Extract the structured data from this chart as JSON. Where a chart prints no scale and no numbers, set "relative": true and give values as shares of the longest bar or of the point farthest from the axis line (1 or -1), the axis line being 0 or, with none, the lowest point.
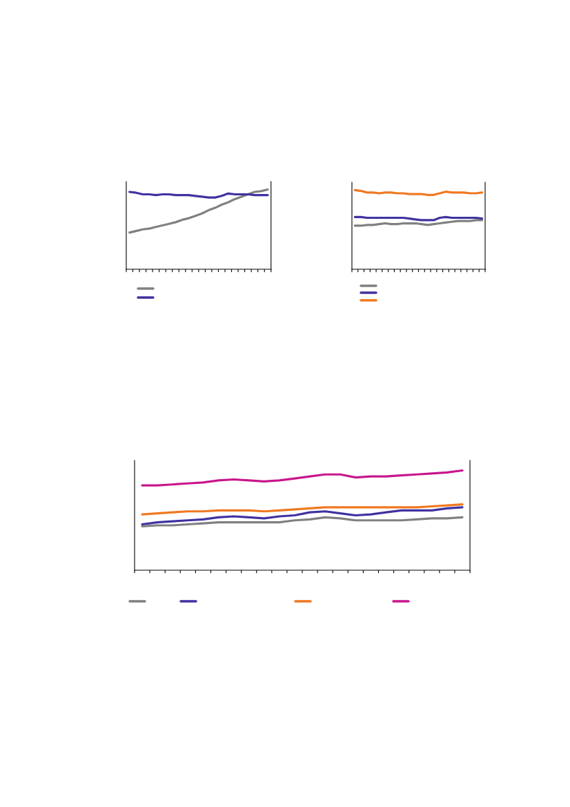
{
  "chart_data": [
    {
      "type": "line",
      "relative": true,
      "grid": false,
      "marker": "none",
      "line_style": "solid",
      "categories": [
        null,
        null,
        null,
        null,
        null,
        null,
        null,
        null,
        null,
        null,
        null,
        null,
        null,
        null,
        null,
        null,
        null,
        null,
        null,
        null,
        null,
        null
      ],
      "series": [
        {
          "color": "#808080",
          "values": [
            0.46,
            0.48,
            0.5,
            0.51,
            0.53,
            0.55,
            0.57,
            0.59,
            0.62,
            0.64,
            0.67,
            0.7,
            0.74,
            0.77,
            0.81,
            0.84,
            0.88,
            0.91,
            0.94,
            0.97,
            0.98,
            1.0
          ]
        },
        {
          "color": "#3f32a0",
          "values": [
            0.97,
            0.96,
            0.94,
            0.94,
            0.93,
            0.94,
            0.94,
            0.93,
            0.93,
            0.93,
            0.92,
            0.91,
            0.9,
            0.9,
            0.92,
            0.95,
            0.94,
            0.94,
            0.94,
            0.93,
            0.93,
            0.93
          ]
        }
      ]
    },
    {
      "type": "line",
      "relative": true,
      "grid": false,
      "marker": "none",
      "line_style": "solid",
      "categories": [
        null,
        null,
        null,
        null,
        null,
        null,
        null,
        null,
        null,
        null,
        null,
        null,
        null,
        null,
        null,
        null,
        null,
        null,
        null,
        null,
        null,
        null
      ],
      "series": [
        {
          "color": "#808080",
          "values": [
            0.55,
            0.55,
            0.56,
            0.56,
            0.57,
            0.58,
            0.57,
            0.57,
            0.58,
            0.58,
            0.58,
            0.57,
            0.56,
            0.57,
            0.58,
            0.59,
            0.6,
            0.61,
            0.61,
            0.61,
            0.62,
            0.62
          ]
        },
        {
          "color": "#3f32a0",
          "values": [
            0.66,
            0.66,
            0.65,
            0.65,
            0.65,
            0.65,
            0.65,
            0.65,
            0.65,
            0.64,
            0.63,
            0.62,
            0.62,
            0.62,
            0.65,
            0.66,
            0.65,
            0.65,
            0.65,
            0.65,
            0.65,
            0.64
          ]
        },
        {
          "color": "#f07820",
          "values": [
            1.0,
            0.99,
            0.97,
            0.97,
            0.96,
            0.97,
            0.97,
            0.96,
            0.96,
            0.95,
            0.95,
            0.95,
            0.94,
            0.94,
            0.96,
            0.98,
            0.97,
            0.97,
            0.97,
            0.96,
            0.96,
            0.97
          ]
        }
      ]
    },
    {
      "type": "line",
      "relative": true,
      "grid": false,
      "marker": "none",
      "line_style": "solid",
      "categories": [
        null,
        null,
        null,
        null,
        null,
        null,
        null,
        null,
        null,
        null,
        null,
        null,
        null,
        null,
        null,
        null,
        null,
        null,
        null,
        null,
        null,
        null
      ],
      "series": [
        {
          "color": "#808080",
          "values": [
            0.44,
            0.45,
            0.45,
            0.46,
            0.47,
            0.48,
            0.48,
            0.48,
            0.48,
            0.48,
            0.5,
            0.51,
            0.53,
            0.52,
            0.5,
            0.5,
            0.5,
            0.5,
            0.51,
            0.52,
            0.52,
            0.53
          ]
        },
        {
          "color": "#3f32a0",
          "values": [
            0.46,
            0.48,
            0.49,
            0.5,
            0.51,
            0.53,
            0.54,
            0.53,
            0.52,
            0.54,
            0.55,
            0.58,
            0.59,
            0.57,
            0.55,
            0.56,
            0.58,
            0.6,
            0.6,
            0.6,
            0.62,
            0.63
          ]
        },
        {
          "color": "#f07820",
          "values": [
            0.56,
            0.57,
            0.58,
            0.59,
            0.59,
            0.6,
            0.6,
            0.6,
            0.59,
            0.6,
            0.61,
            0.62,
            0.63,
            0.63,
            0.63,
            0.63,
            0.63,
            0.63,
            0.63,
            0.64,
            0.65,
            0.66
          ]
        },
        {
          "color": "#c8168c",
          "values": [
            0.85,
            0.85,
            0.86,
            0.87,
            0.88,
            0.9,
            0.91,
            0.9,
            0.89,
            0.9,
            0.92,
            0.94,
            0.96,
            0.96,
            0.93,
            0.94,
            0.94,
            0.95,
            0.96,
            0.97,
            0.98,
            1.0
          ]
        }
      ]
    }
  ]
}
